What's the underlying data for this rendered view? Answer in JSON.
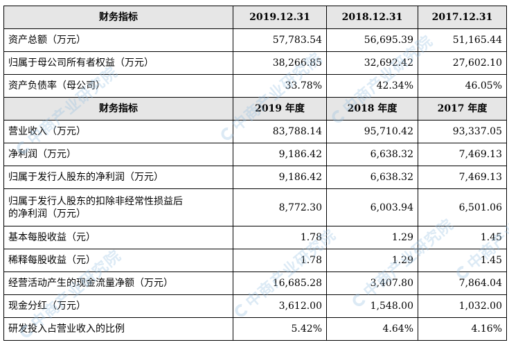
{
  "watermark": "中商产业研究院",
  "header1": {
    "label": "财务指标",
    "cols": [
      "2019.12.31",
      "2018.12.31",
      "2017.12.31"
    ]
  },
  "balance_rows": [
    {
      "label": "资产总额（万元）",
      "values": [
        "57,783.54",
        "56,695.39",
        "51,165.44"
      ]
    },
    {
      "label": "归属于母公司所有者权益（万元）",
      "values": [
        "38,266.85",
        "32,692.42",
        "27,602.10"
      ]
    },
    {
      "label": "资产负债率（母公司）",
      "values": [
        "33.78%",
        "42.34%",
        "46.05%"
      ]
    }
  ],
  "header2": {
    "label": "财务指标",
    "cols": [
      "2019 年度",
      "2018 年度",
      "2017 年度"
    ]
  },
  "income_rows": [
    {
      "label": "营业收入（万元）",
      "values": [
        "83,788.14",
        "95,710.42",
        "93,337.05"
      ]
    },
    {
      "label": "净利润（万元）",
      "values": [
        "9,186.42",
        "6,638.32",
        "7,469.13"
      ]
    },
    {
      "label": "归属于发行人股东的净利润（万元）",
      "values": [
        "9,186.42",
        "6,638.32",
        "7,469.13"
      ]
    },
    {
      "label_line1": "归属于发行人股东的扣除非经常性损益后",
      "label_line2": "的净利润（万元）",
      "values": [
        "8,772.30",
        "6,003.94",
        "6,501.06"
      ]
    },
    {
      "label": "基本每股收益（元）",
      "values": [
        "1.78",
        "1.29",
        "1.45"
      ]
    },
    {
      "label": "稀释每股收益（元）",
      "values": [
        "1.78",
        "1.29",
        "1.45"
      ]
    },
    {
      "label": "经营活动产生的现金流量净额（万元）",
      "values": [
        "16,685.28",
        "3,407.80",
        "7,864.04"
      ]
    },
    {
      "label": "现金分红（万元）",
      "values": [
        "3,612.00",
        "1,548.00",
        "1,032.00"
      ]
    },
    {
      "label": "研发投入占营业收入的比例",
      "values": [
        "5.42%",
        "4.64%",
        "4.16%"
      ]
    }
  ]
}
